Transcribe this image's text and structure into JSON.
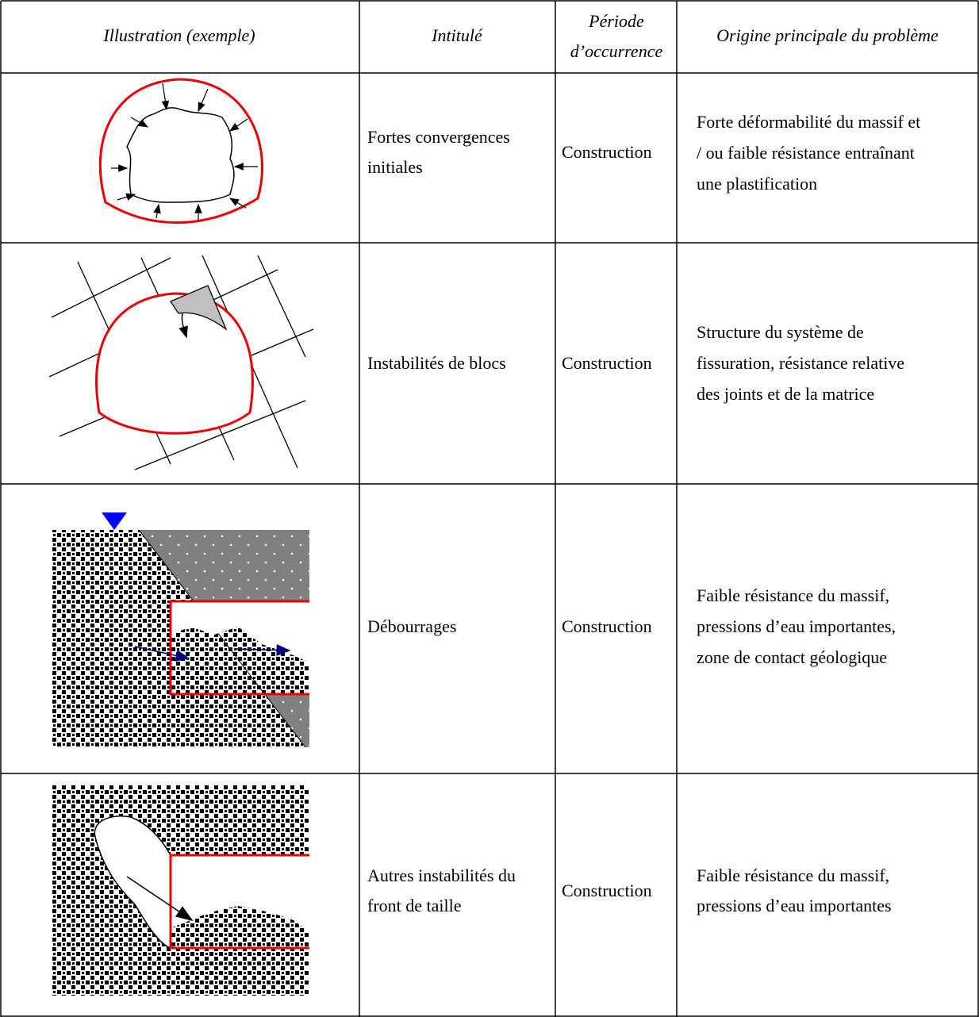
{
  "table": {
    "header": [
      [
        "Illustration (exemple)"
      ],
      [
        "Intitulé"
      ],
      [
        "Période",
        "d’occurrence"
      ],
      [
        "Origine principale du problème"
      ]
    ],
    "rows": [
      {
        "title": [
          "Fortes convergences",
          "initiales"
        ],
        "period": "Construction",
        "origin": [
          "Forte déformabilité du massif et",
          "/ ou faible résistance entraînant",
          "une plastification"
        ]
      },
      {
        "title": [
          "Instabilités de blocs"
        ],
        "period": "Construction",
        "origin": [
          "Structure du système de",
          "fissuration, résistance relative",
          "des joints et de la matrice"
        ]
      },
      {
        "title": [
          "Débourrages"
        ],
        "period": "Construction",
        "origin": [
          "Faible résistance du massif,",
          "pressions d’eau importantes,",
          "zone de contact géologique"
        ]
      },
      {
        "title": [
          "Autres instabilités du",
          "front de taille"
        ],
        "period": "Construction",
        "origin": [
          "Faible résistance du massif,",
          "pressions d’eau importantes"
        ]
      }
    ]
  }
}
